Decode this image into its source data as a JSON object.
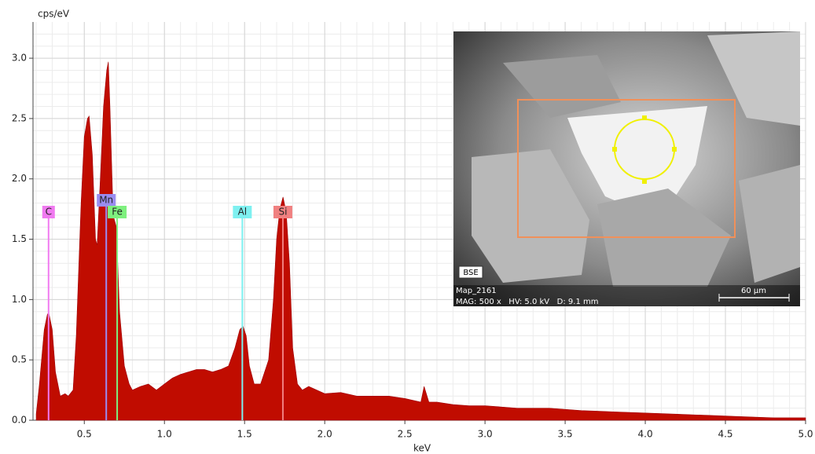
{
  "chart_data": {
    "type": "area",
    "y_label": "cps/eV",
    "x_label": "keV",
    "xlim": [
      0.18,
      5.0
    ],
    "ylim": [
      0,
      3.3
    ],
    "xticks": [
      0.5,
      {
        "value": 1,
        "label": "1.0"
      },
      1.5,
      {
        "value": 2,
        "label": "2.0"
      },
      2.5,
      {
        "value": 3,
        "label": "3.0"
      },
      3.5,
      {
        "value": 4,
        "label": "4.0"
      },
      4.5,
      {
        "value": 5,
        "label": "5.0"
      }
    ],
    "yticks": [
      {
        "value": 0,
        "label": "0.0"
      },
      0.5,
      {
        "value": 1,
        "label": "1.0"
      },
      1.5,
      {
        "value": 2,
        "label": "2.0"
      },
      2.5,
      {
        "value": 3,
        "label": "3.0"
      }
    ],
    "grid": true,
    "color": "#c00c00",
    "x": [
      0.2,
      0.22,
      0.25,
      0.27,
      0.28,
      0.3,
      0.32,
      0.35,
      0.38,
      0.4,
      0.43,
      0.45,
      0.48,
      0.5,
      0.52,
      0.53,
      0.55,
      0.57,
      0.58,
      0.6,
      0.62,
      0.64,
      0.65,
      0.66,
      0.68,
      0.7,
      0.72,
      0.75,
      0.78,
      0.8,
      0.85,
      0.9,
      0.95,
      1.0,
      1.05,
      1.1,
      1.15,
      1.2,
      1.25,
      1.3,
      1.35,
      1.4,
      1.44,
      1.47,
      1.49,
      1.51,
      1.53,
      1.56,
      1.6,
      1.65,
      1.68,
      1.7,
      1.72,
      1.74,
      1.76,
      1.78,
      1.8,
      1.83,
      1.86,
      1.9,
      2.0,
      2.1,
      2.2,
      2.3,
      2.4,
      2.5,
      2.6,
      2.62,
      2.65,
      2.7,
      2.8,
      2.9,
      3.0,
      3.2,
      3.4,
      3.6,
      3.8,
      4.0,
      4.2,
      4.4,
      4.6,
      4.8,
      5.0
    ],
    "values": [
      0.05,
      0.3,
      0.75,
      0.88,
      0.88,
      0.75,
      0.4,
      0.2,
      0.22,
      0.2,
      0.25,
      0.7,
      1.8,
      2.35,
      2.5,
      2.52,
      2.2,
      1.5,
      1.45,
      2.0,
      2.6,
      2.9,
      2.97,
      2.6,
      1.7,
      1.6,
      0.9,
      0.45,
      0.3,
      0.25,
      0.28,
      0.3,
      0.25,
      0.3,
      0.35,
      0.38,
      0.4,
      0.42,
      0.42,
      0.4,
      0.42,
      0.45,
      0.6,
      0.75,
      0.78,
      0.7,
      0.45,
      0.3,
      0.3,
      0.5,
      1.0,
      1.5,
      1.75,
      1.85,
      1.72,
      1.3,
      0.6,
      0.3,
      0.25,
      0.28,
      0.22,
      0.23,
      0.2,
      0.2,
      0.2,
      0.18,
      0.15,
      0.28,
      0.15,
      0.15,
      0.13,
      0.12,
      0.12,
      0.1,
      0.1,
      0.08,
      0.07,
      0.06,
      0.05,
      0.04,
      0.03,
      0.02,
      0.02
    ],
    "elements": [
      {
        "name": "C",
        "x": 0.277,
        "color": "#f07af0"
      },
      {
        "name": "Mn",
        "x": 0.637,
        "color": "#9a8cf0"
      },
      {
        "name": "Fe",
        "x": 0.705,
        "color": "#7ef07e"
      },
      {
        "name": "Al",
        "x": 1.486,
        "color": "#7ef0f0"
      },
      {
        "name": "Si",
        "x": 1.739,
        "color": "#f08080"
      }
    ],
    "inset": {
      "detector": "BSE",
      "map": "Map_2161",
      "info": "MAG: 500 x   HV: 5.0 kV   D: 9.1 mm",
      "scale": "60 µm"
    }
  }
}
